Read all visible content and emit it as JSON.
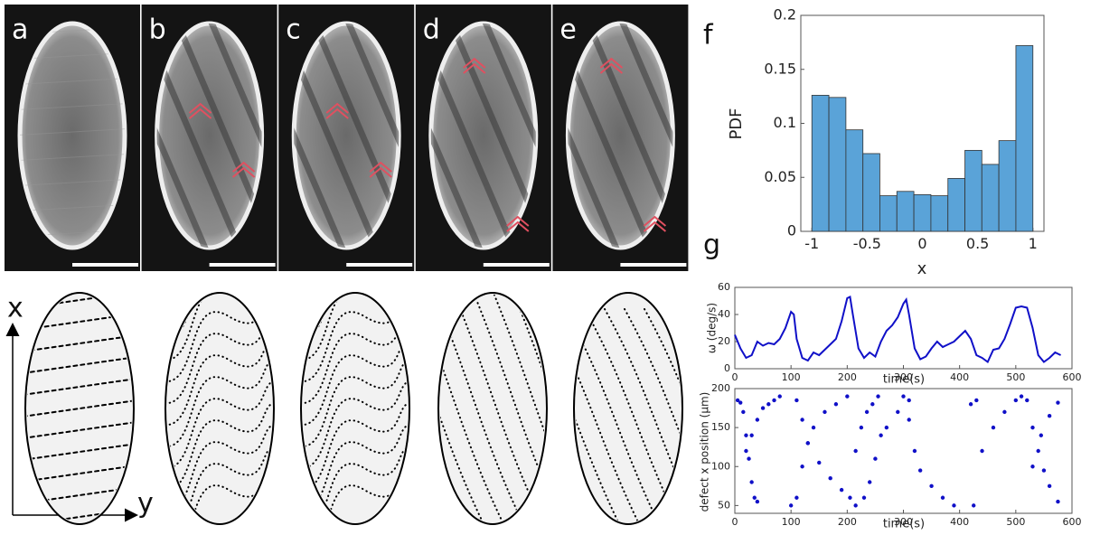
{
  "panel_labels": [
    "a",
    "b",
    "c",
    "d",
    "e",
    "f",
    "g"
  ],
  "sketch_axes": {
    "x": "x",
    "y": "y"
  },
  "chart_data": [
    {
      "type": "histogram",
      "xlabel": "x",
      "ylabel": "PDF",
      "color": "#5aa3d8",
      "bins": [
        -1,
        -0.846,
        -0.692,
        -0.538,
        -0.385,
        -0.231,
        -0.077,
        0.077,
        0.231,
        0.385,
        0.538,
        0.692,
        0.846,
        1
      ],
      "values": [
        0.126,
        0.124,
        0.094,
        0.072,
        0.033,
        0.037,
        0.034,
        0.033,
        0.049,
        0.075,
        0.062,
        0.084,
        0.172
      ],
      "xlim": [
        -1.1,
        1.1
      ],
      "ylim": [
        0,
        0.2
      ],
      "xticks": [
        -1,
        -0.5,
        0,
        0.5,
        1
      ],
      "yticks": [
        0,
        0.05,
        0.1,
        0.15,
        0.2
      ]
    },
    {
      "type": "line",
      "xlabel": "time(s)",
      "ylabel": "ω (deg/s)",
      "color": "#1010c8",
      "x": [
        0,
        10,
        20,
        30,
        40,
        50,
        60,
        70,
        80,
        90,
        100,
        105,
        110,
        120,
        130,
        140,
        150,
        160,
        170,
        180,
        190,
        200,
        205,
        210,
        220,
        230,
        240,
        250,
        260,
        270,
        280,
        290,
        300,
        305,
        310,
        320,
        330,
        340,
        350,
        360,
        370,
        380,
        390,
        400,
        410,
        420,
        430,
        440,
        450,
        460,
        470,
        480,
        490,
        500,
        510,
        520,
        530,
        540,
        550,
        560,
        570,
        580
      ],
      "values": [
        25,
        15,
        8,
        10,
        20,
        17,
        19,
        18,
        22,
        30,
        42,
        40,
        22,
        8,
        6,
        12,
        10,
        14,
        18,
        22,
        35,
        52,
        53,
        40,
        15,
        8,
        12,
        9,
        20,
        28,
        32,
        38,
        48,
        51,
        40,
        15,
        7,
        9,
        15,
        20,
        16,
        18,
        20,
        24,
        28,
        22,
        10,
        8,
        5,
        14,
        15,
        22,
        33,
        45,
        46,
        45,
        30,
        10,
        5,
        8,
        12,
        10
      ],
      "xlim": [
        0,
        600
      ],
      "ylim": [
        0,
        60
      ],
      "xticks": [
        0,
        100,
        200,
        300,
        400,
        500,
        600
      ],
      "yticks": [
        0,
        20,
        40,
        60
      ]
    },
    {
      "type": "scatter",
      "xlabel": "time(s)",
      "ylabel": "defect x position (μm)",
      "color": "#1010c8",
      "x": [
        5,
        10,
        15,
        20,
        25,
        30,
        35,
        40,
        20,
        30,
        40,
        50,
        60,
        70,
        80,
        100,
        110,
        120,
        130,
        140,
        160,
        180,
        200,
        110,
        120,
        130,
        150,
        170,
        190,
        205,
        215,
        225,
        235,
        245,
        255,
        215,
        230,
        240,
        250,
        260,
        270,
        290,
        310,
        300,
        310,
        320,
        330,
        350,
        370,
        390,
        420,
        430,
        425,
        440,
        460,
        480,
        500,
        510,
        520,
        530,
        540,
        550,
        560,
        575,
        530,
        545,
        560,
        575
      ],
      "values": [
        185,
        182,
        170,
        140,
        110,
        80,
        60,
        55,
        120,
        140,
        160,
        175,
        180,
        185,
        190,
        50,
        60,
        100,
        130,
        150,
        170,
        180,
        190,
        185,
        160,
        130,
        105,
        85,
        70,
        60,
        120,
        150,
        170,
        180,
        190,
        50,
        60,
        80,
        110,
        140,
        150,
        170,
        185,
        190,
        160,
        120,
        95,
        75,
        60,
        50,
        180,
        185,
        50,
        120,
        150,
        170,
        185,
        190,
        185,
        150,
        120,
        95,
        75,
        55,
        100,
        140,
        165,
        182
      ],
      "xlim": [
        0,
        600
      ],
      "ylim": [
        40,
        200
      ],
      "xticks": [
        0,
        100,
        200,
        300,
        400,
        500,
        600
      ],
      "yticks": [
        50,
        100,
        150,
        200
      ]
    }
  ]
}
